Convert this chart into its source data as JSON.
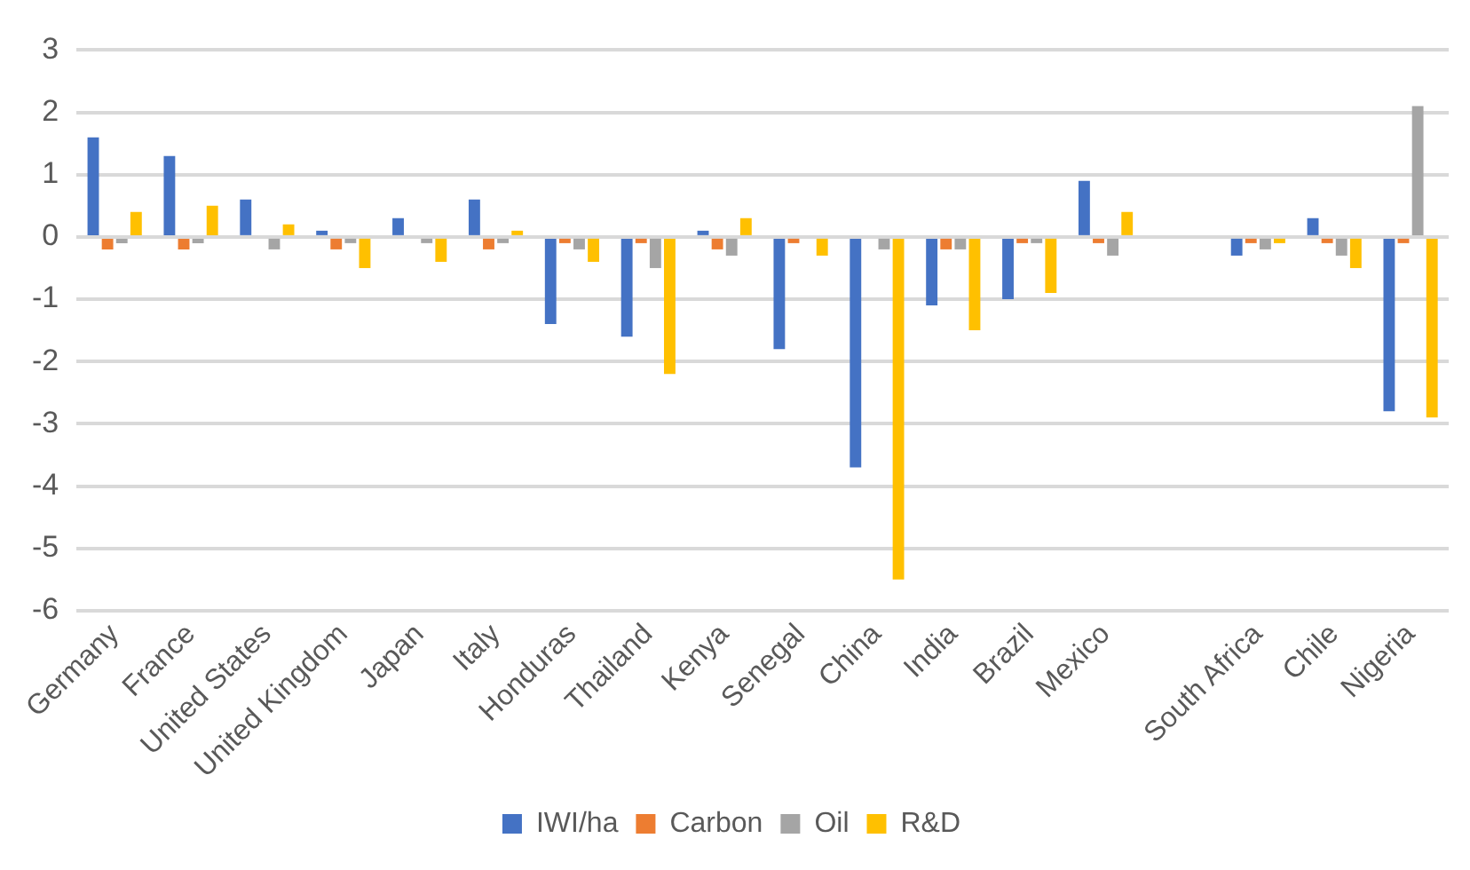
{
  "chart_data": {
    "type": "bar",
    "categories": [
      "Germany",
      "France",
      "United States",
      "United Kingdom",
      "Japan",
      "Italy",
      "Honduras",
      "Thailand",
      "Kenya",
      "Senegal",
      "China",
      "India",
      "Brazil",
      "Mexico",
      null,
      "South Africa",
      "Chile",
      "Nigeria"
    ],
    "series": [
      {
        "name": "IWI/ha",
        "color": "#4472c4",
        "values": [
          1.6,
          1.3,
          0.6,
          0.1,
          0.3,
          0.6,
          -1.4,
          -1.6,
          0.1,
          -1.8,
          -3.7,
          -1.1,
          -1.0,
          0.9,
          null,
          -0.3,
          0.3,
          -2.8
        ]
      },
      {
        "name": "Carbon",
        "color": "#ed7d31",
        "values": [
          -0.2,
          -0.2,
          0,
          -0.2,
          0,
          -0.2,
          -0.1,
          -0.1,
          -0.2,
          -0.1,
          0,
          -0.2,
          -0.1,
          -0.1,
          null,
          -0.1,
          -0.1,
          -0.1
        ]
      },
      {
        "name": "Oil",
        "color": "#a5a5a5",
        "values": [
          -0.1,
          -0.1,
          -0.2,
          -0.1,
          -0.1,
          -0.1,
          -0.2,
          -0.5,
          -0.3,
          0,
          -0.2,
          -0.2,
          -0.1,
          -0.3,
          null,
          -0.2,
          -0.3,
          2.1
        ]
      },
      {
        "name": "R&D",
        "color": "#ffc000",
        "values": [
          0.4,
          0.5,
          0.2,
          -0.5,
          -0.4,
          0.1,
          -0.4,
          -2.2,
          0.3,
          -0.3,
          -5.5,
          -1.5,
          -0.9,
          0.4,
          null,
          -0.1,
          -0.5,
          -2.9
        ]
      }
    ],
    "ylim": [
      -6,
      3
    ],
    "yticks": [
      -6,
      -5,
      -4,
      -3,
      -2,
      -1,
      0,
      1,
      2,
      3
    ],
    "grid": "y",
    "legend": "bottom"
  }
}
